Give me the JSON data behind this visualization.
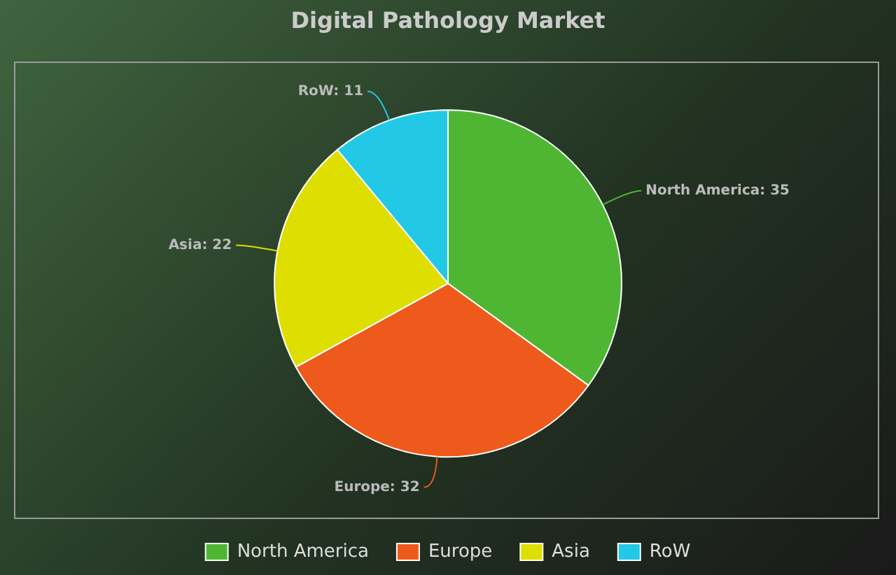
{
  "chart_data": {
    "type": "pie",
    "title": "Digital Pathology Market",
    "categories": [
      "North America",
      "Europe",
      "Asia",
      "RoW"
    ],
    "values": [
      35,
      32,
      22,
      11
    ],
    "colors": [
      "#4fb634",
      "#ee5a1c",
      "#dede00",
      "#22c8e6"
    ],
    "value_labels": [
      "North America: 35",
      "Europe: 32",
      "Asia: 22",
      "RoW: 11"
    ],
    "legend": "bottom"
  }
}
